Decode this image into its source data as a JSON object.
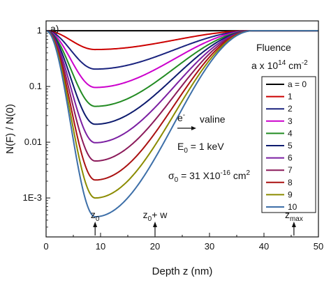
{
  "chart_data": {
    "type": "line",
    "panel_label": "a)",
    "xlabel": "Depth z  (nm)",
    "ylabel": "N(F) / N(0)",
    "xlim": [
      0,
      50
    ],
    "ylim": [
      0.0002,
      1.5
    ],
    "yscale": "log",
    "x_ticks": [
      0,
      10,
      20,
      30,
      40,
      50
    ],
    "x_tick_labels": [
      "0",
      "10",
      "20",
      "30",
      "40",
      "50"
    ],
    "y_ticks": [
      0.001,
      0.01,
      0.1,
      1
    ],
    "y_tick_labels": [
      "1E-3",
      "0.01",
      "0.1",
      "1"
    ],
    "legend_title_1": "Fluence",
    "legend_title_2": "a x 10",
    "legend_title_sup": "14",
    "legend_title_unit": " cm",
    "legend_title_unit_sup": "-2",
    "series": [
      {
        "name": "a = 0",
        "color": "#000000",
        "min_value": 1.0
      },
      {
        "name": "1",
        "color": "#cc0000",
        "min_value": 0.46
      },
      {
        "name": "2",
        "color": "#1a237e",
        "min_value": 0.205
      },
      {
        "name": "3",
        "color": "#cc00cc",
        "min_value": 0.096
      },
      {
        "name": "4",
        "color": "#228b22",
        "min_value": 0.044
      },
      {
        "name": "5",
        "color": "#0d1b6e",
        "min_value": 0.021
      },
      {
        "name": "6",
        "color": "#7b1fa2",
        "min_value": 0.0098
      },
      {
        "name": "7",
        "color": "#8b1a5a",
        "min_value": 0.0046
      },
      {
        "name": "8",
        "color": "#aa1111",
        "min_value": 0.0021
      },
      {
        "name": "9",
        "color": "#8b8b00",
        "min_value": 0.001
      },
      {
        "name": "10",
        "color": "#3d6fa8",
        "min_value": 0.00046
      }
    ],
    "profile_peak_x": 9,
    "profile_end_x": 38,
    "annotations": {
      "particle": "e",
      "particle_sup": "-",
      "target": "valine",
      "energy_label": "E",
      "energy_sub": "0",
      "energy_value": " = 1 keV",
      "sigma_label": "σ",
      "sigma_sub": "0",
      "sigma_value": " = 31 X10",
      "sigma_exp": "-16",
      "sigma_unit": " cm",
      "sigma_unit_sup": "2",
      "markers": [
        {
          "base": "z",
          "sub": "0",
          "suffix": "",
          "x": 9
        },
        {
          "base": "z",
          "sub": "0",
          "suffix": "+ w",
          "x": 20
        },
        {
          "base": "z",
          "sub": "max",
          "suffix": "",
          "x": 45.5
        }
      ]
    }
  }
}
